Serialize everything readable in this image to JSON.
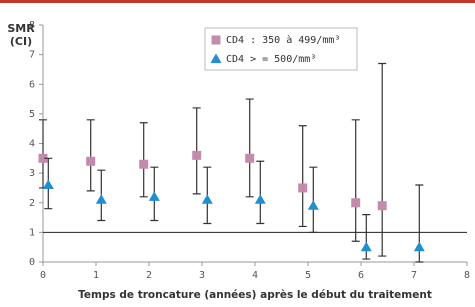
{
  "chart_data": {
    "type": "scatter",
    "y_label_lines": [
      "SMR",
      "(CI)"
    ],
    "x_label": "Temps de troncature (années) après le début du traitement",
    "xlim": [
      0,
      8
    ],
    "xticks": [
      0,
      1,
      2,
      3,
      4,
      5,
      6,
      7,
      8
    ],
    "ylim": [
      0,
      8
    ],
    "yticks": [
      0,
      1,
      2,
      3,
      4,
      5,
      6,
      7,
      8
    ],
    "reference_line": 1,
    "series": [
      {
        "name": "CD4 : 350 à 499/mm³",
        "color": "#c38aab",
        "marker": "square",
        "x": [
          0,
          0.9,
          1.9,
          2.9,
          3.9,
          4.9,
          5.9,
          6.4
        ],
        "values": [
          3.5,
          3.4,
          3.3,
          3.6,
          3.5,
          2.5,
          2.0,
          1.9
        ],
        "lower": [
          2.5,
          2.4,
          2.2,
          2.3,
          2.2,
          1.2,
          0.7,
          0.2
        ],
        "upper": [
          4.8,
          4.8,
          4.7,
          5.2,
          5.5,
          4.6,
          4.8,
          6.7
        ]
      },
      {
        "name": "CD4 > = 500/mm³",
        "color": "#1f8fd2",
        "marker": "triangle",
        "x": [
          0.1,
          1.1,
          2.1,
          3.1,
          4.1,
          5.1,
          6.1,
          7.1
        ],
        "values": [
          2.6,
          2.1,
          2.2,
          2.1,
          2.1,
          1.9,
          0.5,
          0.5
        ],
        "lower": [
          1.8,
          1.4,
          1.4,
          1.3,
          1.3,
          1.0,
          0.1,
          0.0
        ],
        "upper": [
          3.5,
          3.1,
          3.2,
          3.2,
          3.4,
          3.2,
          1.6,
          2.6
        ]
      }
    ]
  }
}
